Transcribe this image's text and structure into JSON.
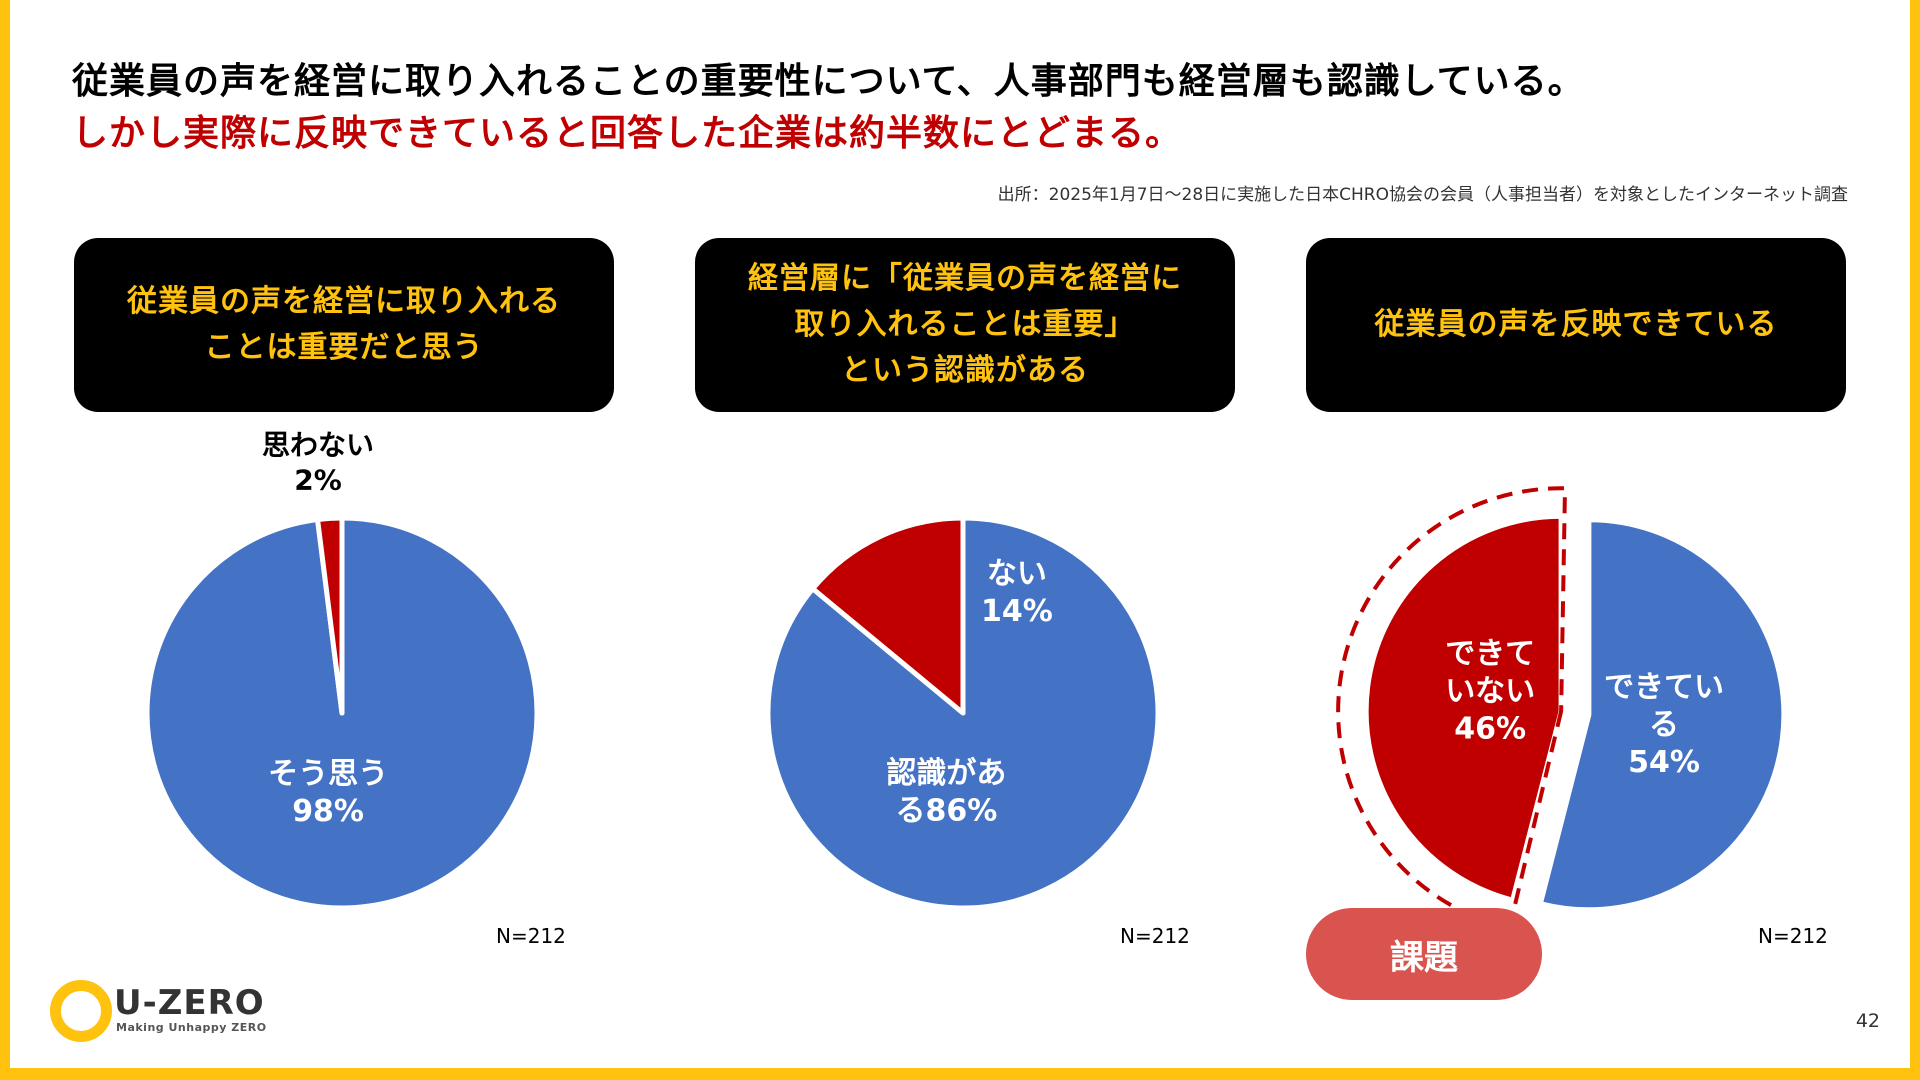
{
  "headline": "従業員の声を経営に取り入れることの重要性について、人事部門も経営層も認識している。",
  "subheadline": "しかし実際に反映できていると回答した企業は約半数にとどまる。",
  "source_note": "出所：2025年1月7日～28日に実施した日本CHRO協会の会員（人事担当者）を対象としたインターネット調査",
  "cards": [
    "従業員の声を経営に取り入れる\nことは重要だと思う",
    "経営層に「従業員の声を経営に\n取り入れることは重要」\nという認識がある",
    "従業員の声を反映できている"
  ],
  "sample_sizes": [
    "N=212",
    "N=212",
    "N=212"
  ],
  "issue_label": "課題",
  "logo": {
    "name": "U-ZERO",
    "tagline": "Making Unhappy ZERO"
  },
  "page_number": "42",
  "colors": {
    "blue": "#4472C4",
    "red": "#C00000",
    "yellow": "#FFC20E",
    "pill": "#D9534F"
  },
  "chart_data": [
    {
      "type": "pie",
      "slices": [
        {
          "label": "そう思う",
          "value": 98,
          "value_label": "98%",
          "color": "#4472C4"
        },
        {
          "label": "思わない",
          "value": 2,
          "value_label": "2%",
          "color": "#C00000"
        }
      ]
    },
    {
      "type": "pie",
      "slices": [
        {
          "label": "認識がある",
          "value": 86,
          "value_label": "86%",
          "color": "#4472C4"
        },
        {
          "label": "ない",
          "value": 14,
          "value_label": "14%",
          "color": "#C00000"
        }
      ]
    },
    {
      "type": "pie",
      "slices": [
        {
          "label": "できている",
          "value": 54,
          "value_label": "54%",
          "color": "#4472C4"
        },
        {
          "label": "できていない",
          "value": 46,
          "value_label": "46%",
          "color": "#C00000"
        }
      ]
    }
  ]
}
